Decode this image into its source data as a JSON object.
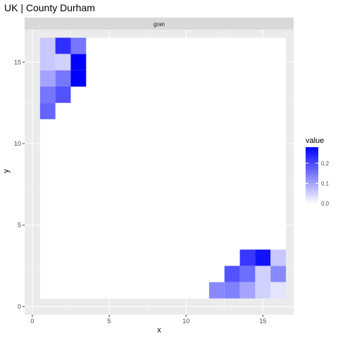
{
  "chart_data": {
    "type": "heatmap",
    "title": "UK | County Durham",
    "facet_label": "gran",
    "xlabel": "x",
    "ylabel": "y",
    "xlim": [
      0,
      17
    ],
    "ylim": [
      0,
      17
    ],
    "x_ticks": [
      0,
      5,
      10,
      15
    ],
    "y_ticks": [
      0,
      5,
      10,
      15
    ],
    "tile_fill_background": "#ffffff",
    "panel_background": "#ebebeb",
    "strip_background": "#d9d9d9",
    "legend": {
      "title": "value",
      "position": "right",
      "low_color": "#ffffff",
      "high_color": "#0000ff",
      "range": [
        0,
        0.28
      ],
      "breaks": [
        0.0,
        0.1,
        0.2
      ],
      "break_labels": [
        "0.0",
        "0.1",
        "0.2"
      ]
    },
    "tiles": [
      {
        "x": 1,
        "y": 16,
        "value": 0.06
      },
      {
        "x": 2,
        "y": 16,
        "value": 0.23
      },
      {
        "x": 3,
        "y": 16,
        "value": 0.15
      },
      {
        "x": 1,
        "y": 15,
        "value": 0.06
      },
      {
        "x": 2,
        "y": 15,
        "value": 0.05
      },
      {
        "x": 3,
        "y": 15,
        "value": 0.28
      },
      {
        "x": 1,
        "y": 14,
        "value": 0.1
      },
      {
        "x": 2,
        "y": 14,
        "value": 0.15
      },
      {
        "x": 3,
        "y": 14,
        "value": 0.28
      },
      {
        "x": 1,
        "y": 13,
        "value": 0.15
      },
      {
        "x": 2,
        "y": 13,
        "value": 0.19
      },
      {
        "x": 1,
        "y": 12,
        "value": 0.17
      },
      {
        "x": 14,
        "y": 3,
        "value": 0.22
      },
      {
        "x": 15,
        "y": 3,
        "value": 0.26
      },
      {
        "x": 16,
        "y": 3,
        "value": 0.06
      },
      {
        "x": 13,
        "y": 2,
        "value": 0.19
      },
      {
        "x": 14,
        "y": 2,
        "value": 0.16
      },
      {
        "x": 15,
        "y": 2,
        "value": 0.05
      },
      {
        "x": 16,
        "y": 2,
        "value": 0.13
      },
      {
        "x": 12,
        "y": 1,
        "value": 0.13
      },
      {
        "x": 13,
        "y": 1,
        "value": 0.14
      },
      {
        "x": 14,
        "y": 1,
        "value": 0.1
      },
      {
        "x": 15,
        "y": 1,
        "value": 0.05
      },
      {
        "x": 16,
        "y": 1,
        "value": 0.03
      }
    ]
  }
}
